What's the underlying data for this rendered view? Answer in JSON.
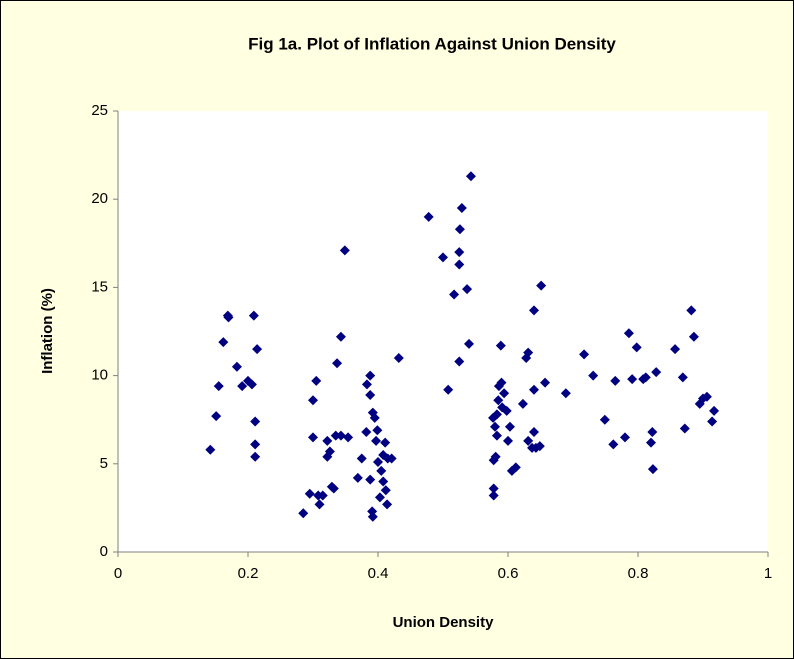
{
  "chart_data": {
    "type": "scatter",
    "title": "Fig 1a. Plot of Inflation Against Union Density",
    "x_label": "Union Density",
    "y_label": "Inflation (%)",
    "color": "#000080",
    "xlim": [
      0,
      1
    ],
    "xticks": [
      0,
      0.2,
      0.4,
      0.6,
      0.8,
      1
    ],
    "ylim": [
      0,
      25
    ],
    "yticks": [
      0,
      5,
      10,
      15,
      20,
      25
    ],
    "x": [
      0.142,
      0.151,
      0.155,
      0.162,
      0.169,
      0.17,
      0.183,
      0.191,
      0.2,
      0.206,
      0.209,
      0.214,
      0.211,
      0.211,
      0.211,
      0.285,
      0.295,
      0.3,
      0.3,
      0.305,
      0.308,
      0.31,
      0.315,
      0.322,
      0.322,
      0.326,
      0.329,
      0.332,
      0.335,
      0.337,
      0.343,
      0.343,
      0.349,
      0.354,
      0.369,
      0.375,
      0.382,
      0.383,
      0.388,
      0.388,
      0.388,
      0.391,
      0.392,
      0.392,
      0.395,
      0.397,
      0.399,
      0.4,
      0.403,
      0.405,
      0.408,
      0.408,
      0.411,
      0.412,
      0.414,
      0.415,
      0.421,
      0.432,
      0.478,
      0.5,
      0.508,
      0.517,
      0.525,
      0.525,
      0.526,
      0.529,
      0.525,
      0.537,
      0.54,
      0.543,
      0.578,
      0.578,
      0.578,
      0.581,
      0.577,
      0.58,
      0.583,
      0.583,
      0.585,
      0.586,
      0.589,
      0.59,
      0.591,
      0.594,
      0.598,
      0.6,
      0.603,
      0.606,
      0.612,
      0.623,
      0.628,
      0.631,
      0.631,
      0.637,
      0.64,
      0.643,
      0.64,
      0.64,
      0.649,
      0.651,
      0.657,
      0.689,
      0.717,
      0.731,
      0.749,
      0.762,
      0.765,
      0.78,
      0.786,
      0.791,
      0.798,
      0.808,
      0.812,
      0.82,
      0.822,
      0.823,
      0.828,
      0.857,
      0.869,
      0.872,
      0.882,
      0.886,
      0.895,
      0.9,
      0.906,
      0.914,
      0.917
    ],
    "values": [
      5.8,
      7.7,
      9.4,
      11.9,
      13.4,
      13.3,
      10.5,
      9.4,
      9.7,
      9.5,
      13.4,
      11.5,
      7.4,
      6.1,
      5.4,
      2.2,
      3.3,
      6.5,
      8.6,
      9.7,
      3.2,
      2.7,
      3.2,
      6.3,
      5.4,
      5.7,
      3.7,
      3.6,
      6.6,
      10.7,
      12.2,
      6.6,
      17.1,
      6.5,
      4.2,
      5.3,
      6.8,
      9.5,
      10.0,
      8.9,
      4.1,
      2.3,
      2.0,
      7.9,
      7.6,
      6.3,
      6.9,
      5.1,
      3.1,
      4.6,
      5.5,
      4.0,
      6.2,
      3.5,
      2.7,
      5.3,
      5.3,
      11.0,
      19.0,
      16.7,
      9.2,
      14.6,
      16.3,
      17.0,
      18.3,
      19.5,
      10.8,
      14.9,
      11.8,
      21.3,
      3.6,
      3.2,
      5.2,
      5.4,
      7.6,
      7.1,
      6.6,
      7.8,
      8.6,
      9.4,
      11.7,
      9.6,
      8.2,
      9.0,
      8.0,
      6.3,
      7.1,
      4.6,
      4.8,
      8.4,
      11.0,
      11.3,
      6.3,
      5.9,
      6.8,
      5.9,
      9.2,
      13.7,
      6.0,
      15.1,
      9.6,
      9.0,
      11.2,
      10.0,
      7.5,
      6.1,
      9.7,
      6.5,
      12.4,
      9.8,
      11.6,
      9.8,
      9.9,
      6.2,
      6.8,
      4.7,
      10.2,
      11.5,
      9.9,
      7.0,
      13.7,
      12.2,
      8.4,
      8.7,
      8.8,
      7.4,
      8.0
    ]
  }
}
